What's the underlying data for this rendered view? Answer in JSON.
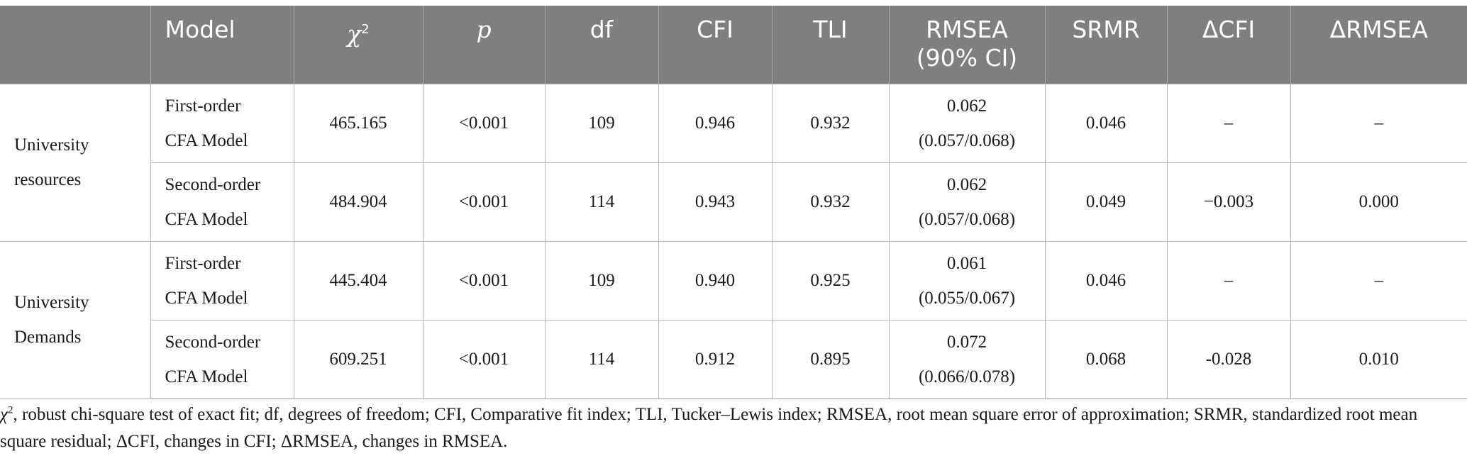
{
  "table": {
    "headers": {
      "group": "",
      "model": "Model",
      "chi2": "χ",
      "chi2_sup": "2",
      "p": "p",
      "df": "df",
      "cfi": "CFI",
      "tli": "TLI",
      "rmsea_line1": "RMSEA",
      "rmsea_line2": "(90% CI)",
      "srmr": "SRMR",
      "dcfi": "ΔCFI",
      "drmsea": "ΔRMSEA"
    },
    "groups": [
      {
        "label_line1": "University",
        "label_line2": "resources",
        "rows": [
          {
            "model_line1": "First-order",
            "model_line2": "CFA Model",
            "chi2": "465.165",
            "p": "<0.001",
            "df": "109",
            "cfi": "0.946",
            "tli": "0.932",
            "rmsea": "0.062",
            "rmsea_ci": "(0.057/0.068)",
            "srmr": "0.046",
            "dcfi": "–",
            "drmsea": "–"
          },
          {
            "model_line1": "Second-order",
            "model_line2": "CFA Model",
            "chi2": "484.904",
            "p": "<0.001",
            "df": "114",
            "cfi": "0.943",
            "tli": "0.932",
            "rmsea": "0.062",
            "rmsea_ci": "(0.057/0.068)",
            "srmr": "0.049",
            "dcfi": "−0.003",
            "drmsea": "0.000"
          }
        ]
      },
      {
        "label_line1": "University",
        "label_line2": "Demands",
        "rows": [
          {
            "model_line1": "First-order",
            "model_line2": "CFA Model",
            "chi2": "445.404",
            "p": "<0.001",
            "df": "109",
            "cfi": "0.940",
            "tli": "0.925",
            "rmsea": "0.061",
            "rmsea_ci": "(0.055/0.067)",
            "srmr": "0.046",
            "dcfi": "–",
            "drmsea": "–"
          },
          {
            "model_line1": "Second-order",
            "model_line2": "CFA Model",
            "chi2": "609.251",
            "p": "<0.001",
            "df": "114",
            "cfi": "0.912",
            "tli": "0.895",
            "rmsea": "0.072",
            "rmsea_ci": "(0.066/0.078)",
            "srmr": "0.068",
            "dcfi": "-0.028",
            "drmsea": "0.010"
          }
        ]
      }
    ]
  },
  "footnote": {
    "chi": "χ",
    "chi_sup": "2",
    "text": ", robust chi-square test of exact fit; df, degrees of freedom; CFI, Comparative fit index; TLI, Tucker–Lewis index; RMSEA, root mean square error of approximation; SRMR, standardized root mean square residual; ΔCFI, changes in CFI; ΔRMSEA, changes in RMSEA."
  },
  "colors": {
    "header_bg": "#7f7f7f",
    "header_text": "#ffffff",
    "grid": "#b7b7b7"
  }
}
